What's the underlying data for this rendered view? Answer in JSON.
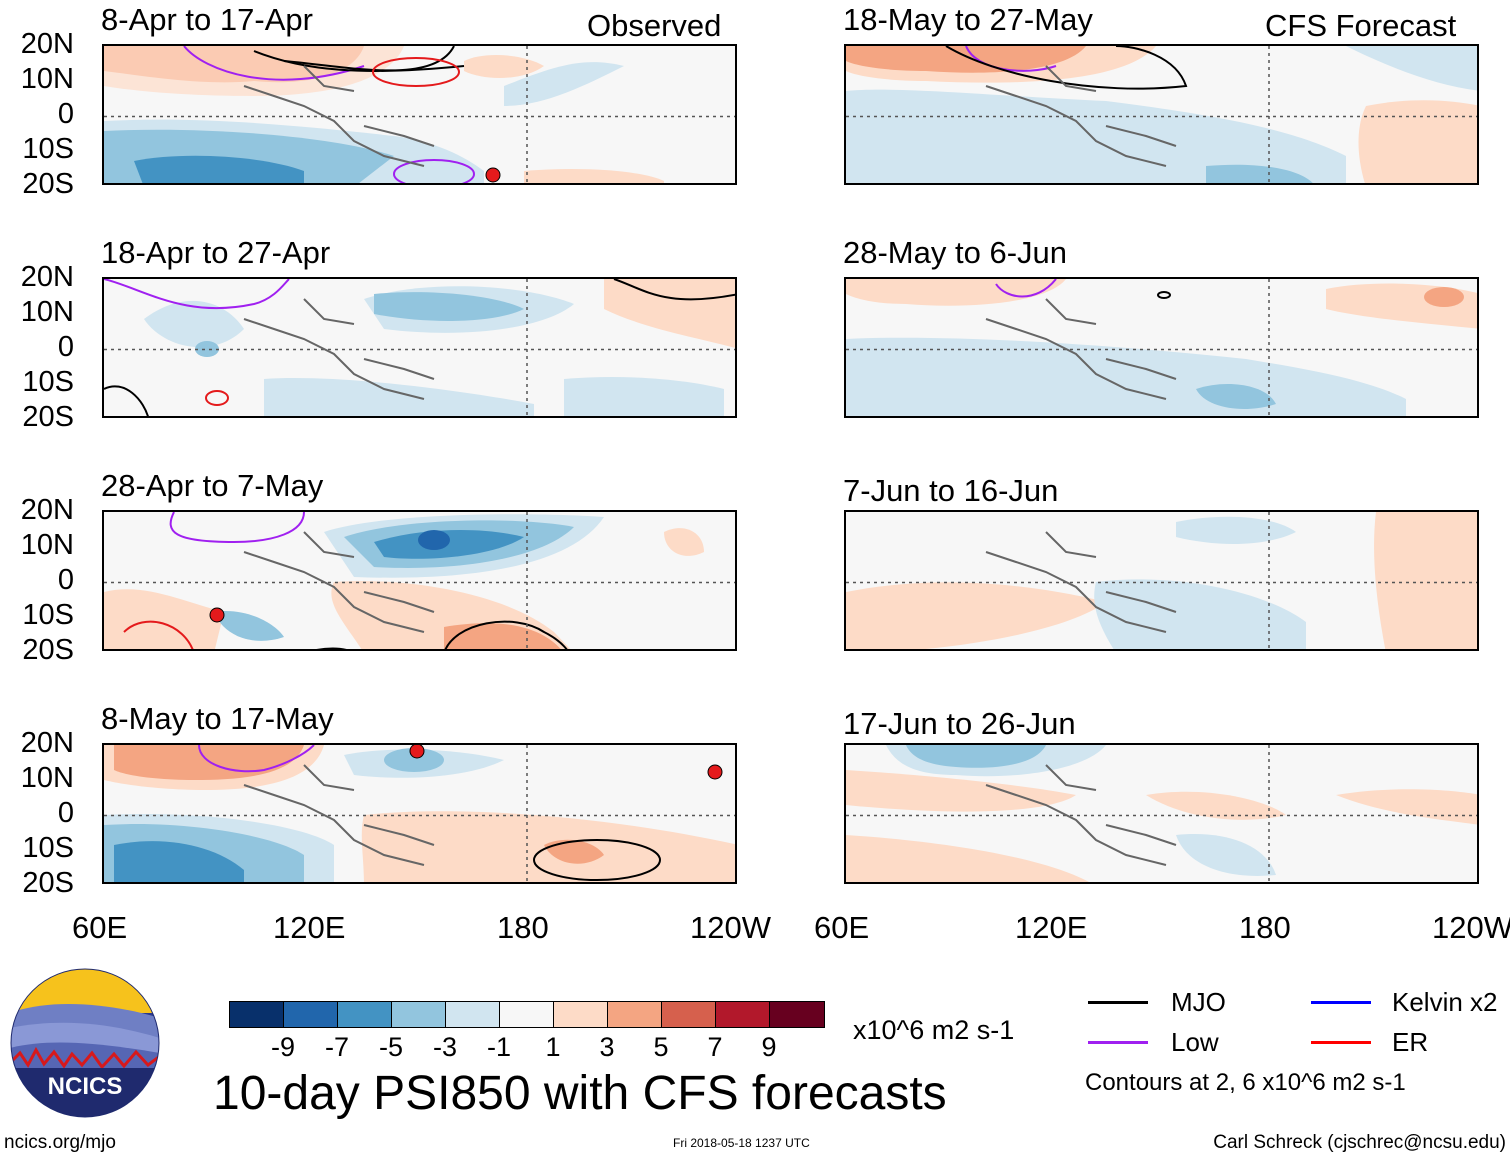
{
  "panels": {
    "obs": [
      {
        "title": "8-Apr to 17-Apr",
        "label": "Observed"
      },
      {
        "title": "18-Apr to 27-Apr"
      },
      {
        "title": "28-Apr to 7-May"
      },
      {
        "title": "8-May to 17-May"
      }
    ],
    "fcst": [
      {
        "title": "18-May to 27-May",
        "label": "CFS Forecast"
      },
      {
        "title": "28-May to 6-Jun"
      },
      {
        "title": "7-Jun to 16-Jun"
      },
      {
        "title": "17-Jun to 26-Jun"
      }
    ]
  },
  "axes": {
    "lat_labels": [
      "20N",
      "10N",
      "0",
      "10S",
      "20S"
    ],
    "lon_labels": [
      "60E",
      "120E",
      "180",
      "120W"
    ]
  },
  "colorbar": {
    "colors": [
      "#08306b",
      "#2166ac",
      "#4393c3",
      "#92c5de",
      "#d1e5f0",
      "#f7f7f7",
      "#fddbc7",
      "#f4a582",
      "#d6604d",
      "#b2182b",
      "#67001f"
    ],
    "ticks": [
      "-9",
      "-7",
      "-5",
      "-3",
      "-1",
      "1",
      "3",
      "5",
      "7",
      "9"
    ],
    "units": "x10^6 m2 s-1"
  },
  "title": "10-day PSI850 with CFS forecasts",
  "legend": [
    {
      "label": "MJO",
      "color": "#000000"
    },
    {
      "label": "Kelvin x2",
      "color": "#0000ff"
    },
    {
      "label": "Low",
      "color": "#a020f0"
    },
    {
      "label": "ER",
      "color": "#ff0000"
    }
  ],
  "contours_note": "Contours at 2, 6 x10^6 m2 s-1",
  "logo_text": "NCICS",
  "footer": {
    "left": "ncics.org/mjo",
    "center": "Fri 2018-05-18 1237 UTC",
    "right": "Carl Schreck (cjschrec@ncsu.edu)"
  }
}
